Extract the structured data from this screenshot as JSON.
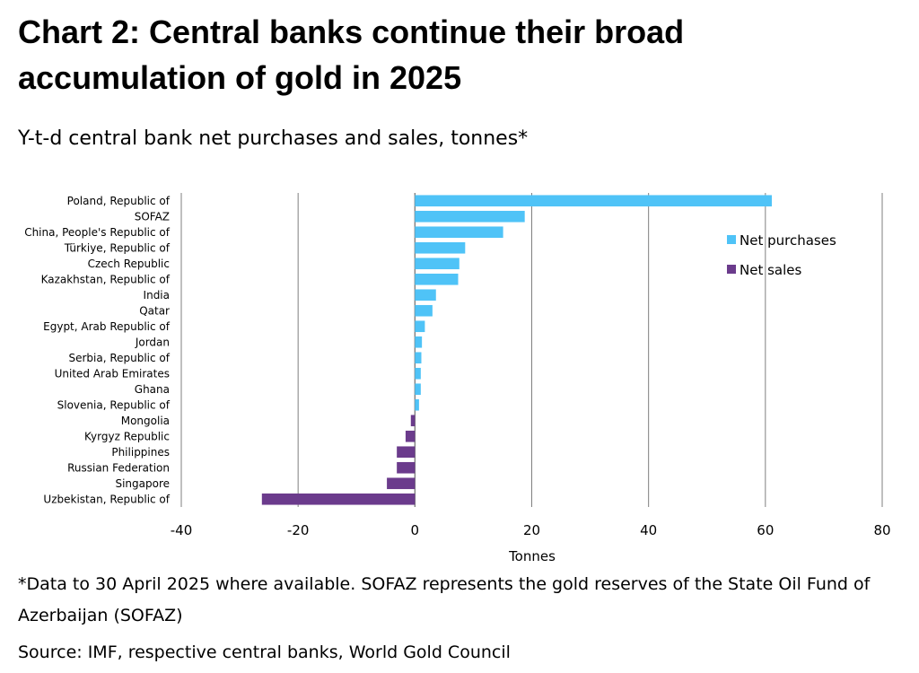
{
  "title": "Chart 2: Central banks continue their broad accumulation of gold in 2025",
  "subtitle": "Y-t-d central bank net purchases and sales, tonnes*",
  "footnote": "*Data to 30 April 2025 where available. SOFAZ represents the gold reserves of the State Oil Fund of Azerbaijan (SOFAZ)",
  "source": "Source: IMF, respective central banks, World Gold Council",
  "colors": {
    "net_purchases": "#4FC3F7",
    "net_sales": "#6B3B8C",
    "gridline": "#7F7F7F"
  },
  "chart_data": {
    "type": "bar",
    "orientation": "horizontal",
    "xlabel": "Tonnes",
    "xlim": [
      -40,
      80
    ],
    "xticks": [
      -40,
      -20,
      0,
      20,
      40,
      60,
      80
    ],
    "grid": true,
    "legend_position": "top-right",
    "series": [
      {
        "name": "Net purchases",
        "color_key": "net_purchases"
      },
      {
        "name": "Net sales",
        "color_key": "net_sales"
      }
    ],
    "categories": [
      "Poland, Republic of",
      "SOFAZ",
      "China, People's Republic of",
      "Türkiye, Republic of",
      "Czech Republic",
      "Kazakhstan, Republic of",
      "India",
      "Qatar",
      "Egypt, Arab Republic of",
      "Jordan",
      "Serbia, Republic of",
      "United Arab Emirates",
      "Ghana",
      "Slovenia, Republic of",
      "Mongolia",
      "Kyrgyz Republic",
      "Philippines",
      "Russian Federation",
      "Singapore",
      "Uzbekistan, Republic of"
    ],
    "values": [
      61.1,
      18.8,
      15.1,
      8.6,
      7.6,
      7.4,
      3.6,
      3.0,
      1.7,
      1.2,
      1.1,
      1.0,
      1.0,
      0.7,
      -0.7,
      -1.6,
      -3.1,
      -3.1,
      -4.8,
      -26.2
    ]
  }
}
